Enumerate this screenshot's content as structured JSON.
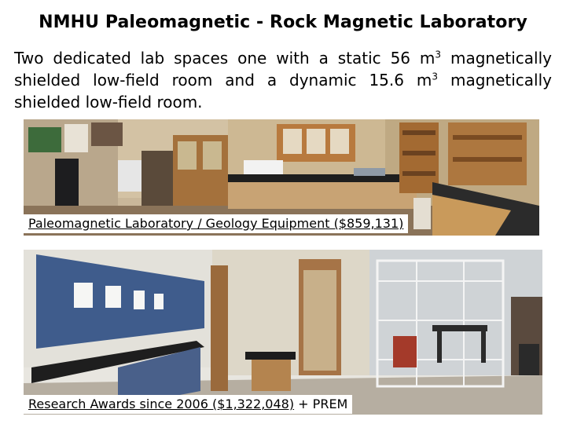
{
  "slide": {
    "title": "NMHU Paleomagnetic - Rock Magnetic Laboratory",
    "body": {
      "part1": "Two dedicated lab spaces one with a static 56 m",
      "sup1": "3",
      "part2": " magnetically shielded low-field room and a dynamic 15.6 m",
      "sup2": "3",
      "part3": " magnetically shielded low-field room."
    }
  },
  "photos": [
    {
      "caption": "Paleomagnetic Laboratory / Geology Equipment ($859,131)"
    },
    {
      "caption_underlined": "Research Awards since 2006 ($1,322,048)",
      "caption_suffix": " + PREM"
    }
  ]
}
